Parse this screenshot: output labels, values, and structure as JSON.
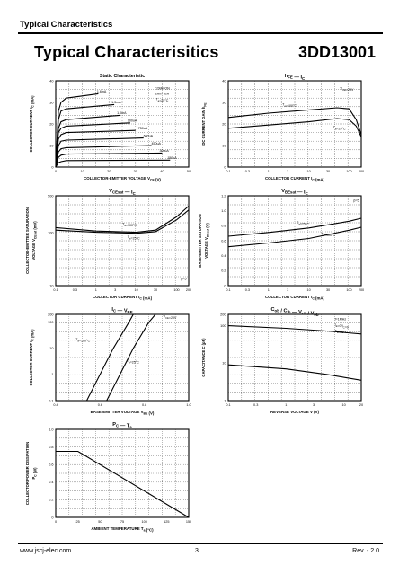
{
  "header": {
    "section": "Typical Characteristics"
  },
  "title": "Typical Characterisitics",
  "part_number": "3DD13001",
  "footer": {
    "url": "www.jscj-elec.com",
    "page": "3",
    "rev": "Rev. - 2.0"
  },
  "chart_data": [
    {
      "type": "line",
      "title": "Static Characteristic",
      "xlabel": "COLLECTOR-EMITTER VOLTAGE   V",
      "xlabel_sub": "CE",
      "xunit": "(V)",
      "ylabel": "COLLECTOR CURRENT   I",
      "ylabel_sub": "C",
      "yunit": "(mA)",
      "xticks": [
        "0",
        "10",
        "20",
        "30",
        "40",
        "50"
      ],
      "yticks": [
        "0",
        "10",
        "20",
        "30",
        "40"
      ],
      "xlim": [
        0,
        50
      ],
      "ylim": [
        0,
        40
      ],
      "legend": [
        "COMMON",
        "EMITTER",
        "T",
        "a",
        "=25°C"
      ],
      "series": [
        {
          "name": "1.6mA",
          "values": [
            [
              0,
              0
            ],
            [
              1,
              26
            ],
            [
              2,
              30
            ],
            [
              4,
              32
            ],
            [
              16,
              34
            ]
          ]
        },
        {
          "name": "1.3mA",
          "values": [
            [
              0,
              0
            ],
            [
              1,
              22
            ],
            [
              2,
              26
            ],
            [
              4,
              27
            ],
            [
              22,
              29
            ]
          ]
        },
        {
          "name": "1.0mA",
          "values": [
            [
              0,
              0
            ],
            [
              1,
              18
            ],
            [
              2,
              21
            ],
            [
              4,
              22
            ],
            [
              24,
              24
            ]
          ]
        },
        {
          "name": "900uA",
          "values": [
            [
              0,
              0
            ],
            [
              1,
              16
            ],
            [
              2,
              18
            ],
            [
              4,
              19
            ],
            [
              28,
              20.5
            ]
          ]
        },
        {
          "name": "750uA",
          "values": [
            [
              0,
              0
            ],
            [
              1,
              13
            ],
            [
              2,
              15
            ],
            [
              4,
              16
            ],
            [
              30,
              17
            ]
          ]
        },
        {
          "name": "600uA",
          "values": [
            [
              0,
              0
            ],
            [
              1,
              10
            ],
            [
              2,
              12
            ],
            [
              4,
              12.5
            ],
            [
              33,
              13.5
            ]
          ]
        },
        {
          "name": "450uA",
          "values": [
            [
              0,
              0
            ],
            [
              1,
              7
            ],
            [
              2,
              8.5
            ],
            [
              4,
              9
            ],
            [
              36,
              10
            ]
          ]
        },
        {
          "name": "300uA",
          "values": [
            [
              0,
              0
            ],
            [
              1,
              4.5
            ],
            [
              2,
              5.5
            ],
            [
              4,
              6
            ],
            [
              40,
              6.5
            ]
          ]
        },
        {
          "name": "150uA",
          "values": [
            [
              0,
              0
            ],
            [
              1,
              2
            ],
            [
              2,
              2.5
            ],
            [
              4,
              3
            ],
            [
              43,
              3.2
            ]
          ]
        }
      ]
    },
    {
      "type": "line",
      "title": "h",
      "title_sub": "FE",
      "title_right": "I",
      "title_right_sub": "C",
      "xlabel": "COLLECTOR CURRENT   I",
      "xlabel_sub": "C",
      "xunit": "(mA)",
      "ylabel": "DC CURRENT GAIN   h",
      "ylabel_sub": "FE",
      "xticks": [
        "0.1",
        "0.3",
        "1",
        "3",
        "10",
        "30",
        "100",
        "200"
      ],
      "yticks": [
        "0",
        "10",
        "20",
        "30",
        "40"
      ],
      "xlim": [
        0.1,
        200
      ],
      "ylim": [
        0,
        40
      ],
      "xscale": "log",
      "annotations": [
        "V",
        "CE",
        "=20V",
        "T",
        "a",
        "=100°C",
        "T",
        "a",
        "=25°C"
      ],
      "series": [
        {
          "name": "Ta=100°C",
          "values": [
            [
              0.1,
              23
            ],
            [
              1,
              25
            ],
            [
              10,
              26.5
            ],
            [
              50,
              27.5
            ],
            [
              100,
              27
            ],
            [
              150,
              22
            ],
            [
              200,
              15
            ]
          ]
        },
        {
          "name": "Ta=25°C",
          "values": [
            [
              0.1,
              18
            ],
            [
              1,
              19.5
            ],
            [
              10,
              21
            ],
            [
              50,
              22.5
            ],
            [
              100,
              22
            ],
            [
              150,
              19
            ],
            [
              200,
              14
            ]
          ]
        }
      ]
    },
    {
      "type": "line",
      "title": "V",
      "title_sub": "CEsat",
      "title_right": "I",
      "title_right_sub": "C",
      "xlabel": "COLLECTOR CURRENT   I",
      "xlabel_sub": "C",
      "xunit": "(mA)",
      "ylabel": "COLLECTOR-EMITTER SATURATION",
      "ylabel2": "VOLTAGE   V",
      "ylabel2_sub": "CEsat",
      "ylabel2_unit": "(mV)",
      "xticks": [
        "0.1",
        "0.3",
        "1",
        "3",
        "10",
        "30",
        "100",
        "200"
      ],
      "yticks": [
        "10",
        "100",
        "500"
      ],
      "xlim": [
        0.1,
        200
      ],
      "ylim": [
        10,
        500
      ],
      "xscale": "log",
      "yscale": "log",
      "annotations": [
        "β=5",
        "T",
        "a",
        "=100°C",
        "T",
        "a",
        "=25°C"
      ],
      "series": [
        {
          "name": "Ta=100°C",
          "values": [
            [
              0.1,
              125
            ],
            [
              1,
              108
            ],
            [
              10,
              102
            ],
            [
              30,
              112
            ],
            [
              100,
              200
            ],
            [
              200,
              320
            ]
          ]
        },
        {
          "name": "Ta=25°C",
          "values": [
            [
              0.1,
              112
            ],
            [
              1,
              102
            ],
            [
              10,
              98
            ],
            [
              30,
              105
            ],
            [
              100,
              175
            ],
            [
              200,
              270
            ]
          ]
        }
      ]
    },
    {
      "type": "line",
      "title": "V",
      "title_sub": "BEsat",
      "title_right": "I",
      "title_right_sub": "C",
      "xlabel": "COLLECTOR CURRENT   I",
      "xlabel_sub": "C",
      "xunit": "(mA)",
      "ylabel": "BASE-EMITTER SATURATION",
      "ylabel2": "VOLTAGE   V",
      "ylabel2_sub": "BEsat",
      "ylabel2_unit": "(V)",
      "xticks": [
        "0.1",
        "0.3",
        "1",
        "3",
        "10",
        "30",
        "100",
        "200"
      ],
      "yticks": [
        "0",
        "0.2",
        "0.4",
        "0.6",
        "0.8",
        "1.0",
        "1.2"
      ],
      "xlim": [
        0.1,
        200
      ],
      "ylim": [
        0,
        1.2
      ],
      "xscale": "log",
      "annotations": [
        "β=5",
        "T",
        "a",
        "=25°C",
        "T",
        "a",
        "=100°C"
      ],
      "series": [
        {
          "name": "Ta=25°C",
          "values": [
            [
              0.1,
              0.66
            ],
            [
              1,
              0.71
            ],
            [
              10,
              0.77
            ],
            [
              100,
              0.86
            ],
            [
              200,
              0.9
            ]
          ]
        },
        {
          "name": "Ta=100°C",
          "values": [
            [
              0.1,
              0.52
            ],
            [
              1,
              0.57
            ],
            [
              10,
              0.63
            ],
            [
              100,
              0.74
            ],
            [
              200,
              0.78
            ]
          ]
        }
      ]
    },
    {
      "type": "line",
      "title": "I",
      "title_sub": "C",
      "title_right": "V",
      "title_right_sub": "BE",
      "xlabel": "BASE-EMITTER VOLTAGE   V",
      "xlabel_sub": "BE",
      "xunit": "(V)",
      "ylabel": "COLLECTOR CURRENT   I",
      "ylabel_sub": "C",
      "yunit": "(mA)",
      "xticks": [
        "0.4",
        "0.6",
        "0.8",
        "1.0"
      ],
      "yticks": [
        "0.1",
        "1",
        "10",
        "100",
        "200"
      ],
      "xlim": [
        0.4,
        1.0
      ],
      "ylim": [
        0.1,
        200
      ],
      "yscale": "log",
      "annotations": [
        "V",
        "CE",
        "=20V",
        "T",
        "a",
        "=100°C",
        "T",
        "a",
        "=25°C"
      ],
      "series": [
        {
          "name": "Ta=100°C",
          "values": [
            [
              0.54,
              0.1
            ],
            [
              0.6,
              1
            ],
            [
              0.66,
              10
            ],
            [
              0.73,
              100
            ],
            [
              0.75,
              200
            ]
          ]
        },
        {
          "name": "Ta=25°C",
          "values": [
            [
              0.63,
              0.1
            ],
            [
              0.69,
              1
            ],
            [
              0.75,
              10
            ],
            [
              0.82,
              100
            ],
            [
              0.85,
              200
            ]
          ]
        }
      ]
    },
    {
      "type": "line",
      "title": "C",
      "title_sub": "ob",
      "title_mid": " / C",
      "title_mid_sub": "ib",
      "title_right": "V",
      "title_right_sub": "cb",
      "title_right2": " / V",
      "title_right2_sub": "eb",
      "xlabel": "REVERSE VOLTAGE   V",
      "xunit": "(V)",
      "ylabel": "CAPACITANCE   C",
      "yunit": "(pF)",
      "xticks": [
        "0.1",
        "0.3",
        "1",
        "3",
        "10",
        "20"
      ],
      "yticks": [
        "1",
        "10",
        "100",
        "200"
      ],
      "xlim": [
        0.1,
        20
      ],
      "ylim": [
        1,
        200
      ],
      "xscale": "log",
      "yscale": "log",
      "annotations": [
        "f=1MHz",
        "I",
        "E",
        "=0/I",
        "C",
        "=0",
        "T",
        "a",
        "=25°C"
      ],
      "series": [
        {
          "name": "Cib",
          "values": [
            [
              0.1,
              100
            ],
            [
              1,
              85
            ],
            [
              5,
              72
            ],
            [
              20,
              60
            ]
          ]
        },
        {
          "name": "Cob",
          "values": [
            [
              0.1,
              9
            ],
            [
              1,
              7
            ],
            [
              5,
              5
            ],
            [
              20,
              3.5
            ]
          ]
        }
      ]
    },
    {
      "type": "line",
      "title": "P",
      "title_sub": "C",
      "title_right": "T",
      "title_right_sub": "a",
      "xlabel": "AMBIENT TEMPERATURE   T",
      "xlabel_sub": "a",
      "xunit": "(°C)",
      "ylabel": "COLLECTOR POWER DISSIPATION",
      "ylabel2": "P",
      "ylabel2_sub": "C",
      "ylabel2_unit": "(W)",
      "xticks": [
        "0",
        "25",
        "50",
        "75",
        "100",
        "125",
        "150"
      ],
      "yticks": [
        "0",
        "0.2",
        "0.4",
        "0.6",
        "0.8",
        "1.0"
      ],
      "xlim": [
        0,
        150
      ],
      "ylim": [
        0,
        1.0
      ],
      "series": [
        {
          "name": "PC",
          "values": [
            [
              0,
              0.75
            ],
            [
              25,
              0.75
            ],
            [
              150,
              0
            ]
          ]
        }
      ]
    }
  ]
}
